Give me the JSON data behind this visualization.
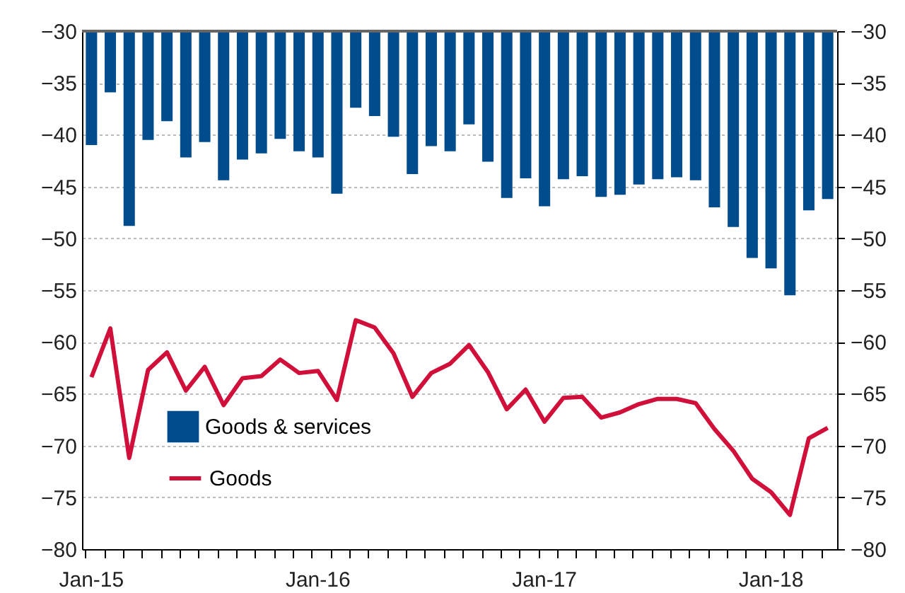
{
  "chart_data": {
    "type": "bar",
    "categories": [
      "Jan-15",
      null,
      null,
      null,
      null,
      null,
      null,
      null,
      null,
      null,
      null,
      null,
      "Jan-16",
      null,
      null,
      null,
      null,
      null,
      null,
      null,
      null,
      null,
      null,
      null,
      "Jan-17",
      null,
      null,
      null,
      null,
      null,
      null,
      null,
      null,
      null,
      null,
      null,
      "Jan-18",
      null,
      null,
      null
    ],
    "series": [
      {
        "name": "Goods & services",
        "color": "#004c8c",
        "values": [
          -41.0,
          -35.9,
          -48.8,
          -40.5,
          -38.7,
          -42.2,
          -40.7,
          -44.4,
          -42.4,
          -41.8,
          -40.4,
          -41.6,
          -42.2,
          -45.7,
          -37.4,
          -38.2,
          -40.2,
          -43.8,
          -41.1,
          -41.6,
          -39.0,
          -42.6,
          -46.1,
          -44.2,
          -46.9,
          -44.3,
          -44.0,
          -46.0,
          -45.8,
          -44.8,
          -44.3,
          -44.1,
          -44.4,
          -47.0,
          -48.9,
          -51.9,
          -52.9,
          -55.5,
          -47.3,
          -46.2
        ]
      },
      {
        "name": "Goods",
        "type": "line",
        "color": "#d0103a",
        "values": [
          -63.4,
          -58.7,
          -71.2,
          -62.7,
          -61.0,
          -64.7,
          -62.4,
          -66.1,
          -63.5,
          -63.3,
          -61.7,
          -63.0,
          -62.8,
          -65.6,
          -57.9,
          -58.6,
          -61.1,
          -65.3,
          -63.0,
          -62.1,
          -60.3,
          -62.9,
          -66.5,
          -64.6,
          -67.7,
          -65.4,
          -65.3,
          -67.3,
          -66.8,
          -66.0,
          -65.5,
          -65.5,
          -65.9,
          -68.4,
          -70.5,
          -73.2,
          -74.5,
          -76.7,
          -69.3,
          -68.3
        ]
      }
    ],
    "ylim": [
      -80,
      -30
    ],
    "yticks": [
      -80,
      -75,
      -70,
      -65,
      -60,
      -55,
      -50,
      -45,
      -40,
      -35,
      -30
    ],
    "y2lim": [
      -80,
      -30
    ],
    "y2ticks": [
      -80,
      -75,
      -70,
      -65,
      -60,
      -55,
      -50,
      -45,
      -40,
      -35,
      -30
    ],
    "ref_lines": [
      {
        "axis": "y",
        "value": -30,
        "color": "#666666"
      }
    ],
    "grid": "y",
    "legend": "bottom left",
    "line_style": "solid",
    "marker": "none"
  }
}
